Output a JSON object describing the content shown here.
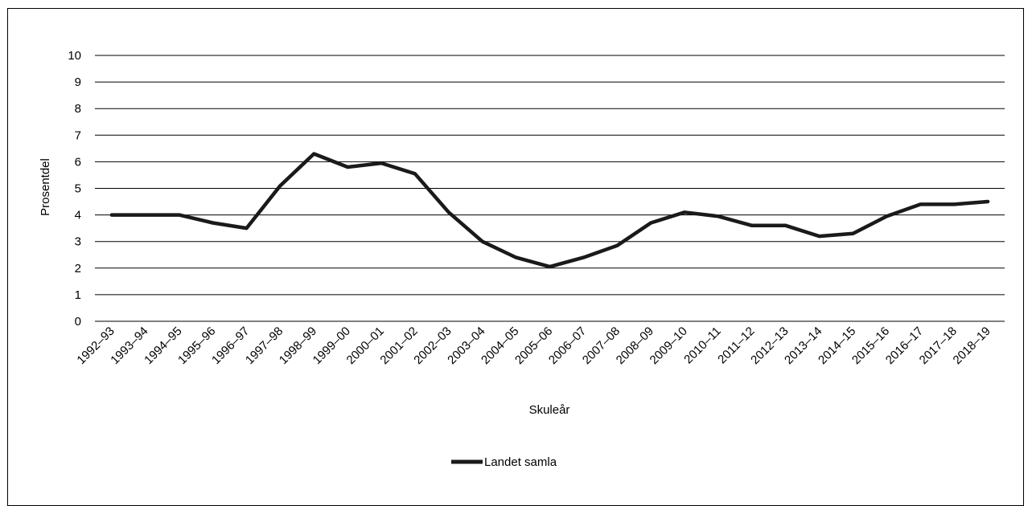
{
  "chart_data": {
    "type": "line",
    "title": "",
    "xlabel": "Skuleår",
    "ylabel": "Prosentdel",
    "ylim": [
      0,
      10
    ],
    "yticks": [
      "0",
      "1",
      "2",
      "3",
      "4",
      "5",
      "6",
      "7",
      "8",
      "9",
      "10"
    ],
    "grid": "horizontal",
    "legend_position": "bottom",
    "categories": [
      "1992–93",
      "1993–94",
      "1994–95",
      "1995–96",
      "1996–97",
      "1997–98",
      "1998–99",
      "1999–00",
      "2000–01",
      "2001–02",
      "2002–03",
      "2003–04",
      "2004–05",
      "2005–06",
      "2006–07",
      "2007–08",
      "2008–09",
      "2009–10",
      "2010–11",
      "2011–12",
      "2012–13",
      "2013–14",
      "2014–15",
      "2015–16",
      "2016–17",
      "2017–18",
      "2018–19"
    ],
    "series": [
      {
        "name": "Landet samla",
        "color": "#1a1a1a",
        "values": [
          4.0,
          4.0,
          4.0,
          3.7,
          3.5,
          5.1,
          6.3,
          5.8,
          5.95,
          5.55,
          4.1,
          3.0,
          2.4,
          2.05,
          2.4,
          2.85,
          3.7,
          4.1,
          3.95,
          3.6,
          3.6,
          3.2,
          3.3,
          3.95,
          4.4,
          4.4,
          4.5
        ]
      }
    ]
  }
}
